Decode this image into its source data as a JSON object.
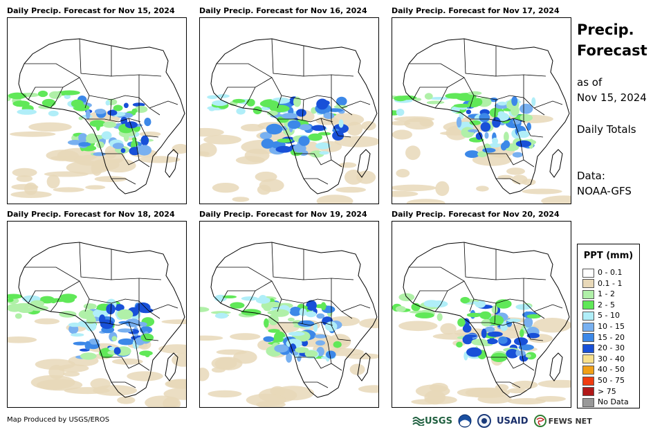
{
  "panels": [
    {
      "title": "Daily Precip. Forecast for Nov 15, 2024"
    },
    {
      "title": "Daily Precip. Forecast for Nov 16, 2024"
    },
    {
      "title": "Daily Precip. Forecast for Nov 17, 2024"
    },
    {
      "title": "Daily Precip. Forecast for Nov 18, 2024"
    },
    {
      "title": "Daily Precip. Forecast for Nov 19, 2024"
    },
    {
      "title": "Daily Precip. Forecast for Nov 20, 2024"
    }
  ],
  "side": {
    "title_line1": "Precip.",
    "title_line2": "Forecast",
    "asof_line1": "as of",
    "asof_line2": "Nov 15, 2024",
    "totals": "Daily Totals",
    "data_line1": "Data:",
    "data_line2": "NOAA-GFS"
  },
  "legend": {
    "title": "PPT (mm)",
    "items": [
      {
        "label": "0 - 0.1",
        "color": "#ffffff"
      },
      {
        "label": "0.1 - 1",
        "color": "#e8d8b8"
      },
      {
        "label": "1 - 2",
        "color": "#b0f0a8"
      },
      {
        "label": "2 - 5",
        "color": "#60e858"
      },
      {
        "label": "5 - 10",
        "color": "#b0eef8"
      },
      {
        "label": "10 - 15",
        "color": "#78b0f0"
      },
      {
        "label": "15 - 20",
        "color": "#3c88e8"
      },
      {
        "label": "20 - 30",
        "color": "#1850d8"
      },
      {
        "label": "30 - 40",
        "color": "#f8e08c"
      },
      {
        "label": "40 - 50",
        "color": "#f0a018"
      },
      {
        "label": "50 - 75",
        "color": "#f03c10"
      },
      {
        "label": "> 75",
        "color": "#b01818"
      },
      {
        "label": "No Data",
        "color": "#999999"
      }
    ]
  },
  "footer": {
    "credit": "Map Produced by USGS/EROS",
    "logo_usgs": "USGS",
    "logo_usaid": "USAID",
    "logo_fews": "FEWS NET"
  }
}
